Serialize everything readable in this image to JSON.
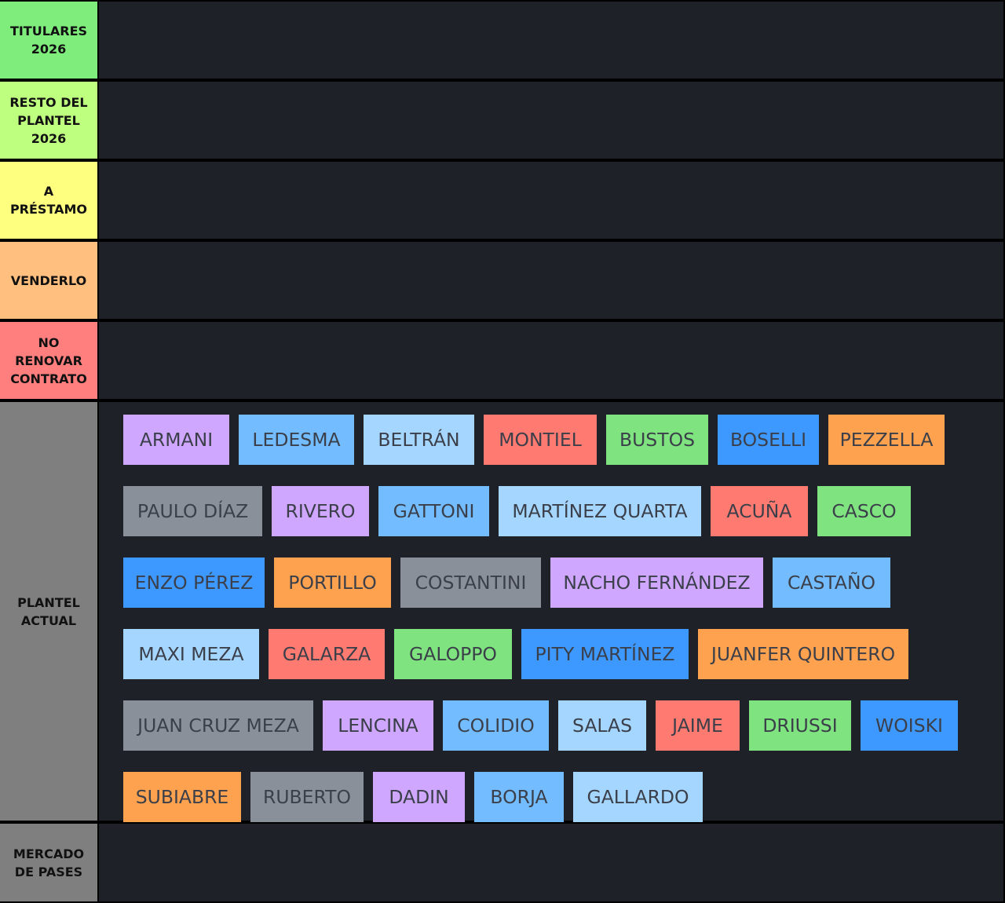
{
  "colors": {
    "background": "#1f2128",
    "border": "#000000",
    "item_text": "#3b3f4a",
    "label_text": "#111111"
  },
  "tiers": [
    {
      "label": "TITULARES\n2026",
      "color": "#7fed7c"
    },
    {
      "label": "RESTO DEL\nPLANTEL\n2026",
      "color": "#bfff7f"
    },
    {
      "label": "A\nPRÉSTAMO",
      "color": "#ffff7f"
    },
    {
      "label": "VENDERLO",
      "color": "#ffbf7f"
    },
    {
      "label": "NO\nRENOVAR\nCONTRATO",
      "color": "#ff7f7f"
    },
    {
      "label": "PLANTEL\nACTUAL",
      "color": "#7f7f7f"
    },
    {
      "label": "MERCADO\nDE PASES",
      "color": "#7f7f7f"
    }
  ],
  "players": [
    {
      "name": "ARMANI",
      "color": "#cfa7ff"
    },
    {
      "name": "LEDESMA",
      "color": "#72bcff"
    },
    {
      "name": "BELTRÁN",
      "color": "#a5d6ff"
    },
    {
      "name": "MONTIEL",
      "color": "#ff7a70"
    },
    {
      "name": "BUSTOS",
      "color": "#7fe37f"
    },
    {
      "name": "BOSELLI",
      "color": "#3d99ff"
    },
    {
      "name": "PEZZELLA",
      "color": "#ffa24f"
    },
    {
      "name": "PAULO DÍAZ",
      "color": "#8a9099"
    },
    {
      "name": "RIVERO",
      "color": "#cfa7ff"
    },
    {
      "name": "GATTONI",
      "color": "#72bcff"
    },
    {
      "name": "MARTÍNEZ QUARTA",
      "color": "#a5d6ff"
    },
    {
      "name": "ACUÑA",
      "color": "#ff7a70"
    },
    {
      "name": "CASCO",
      "color": "#7fe37f"
    },
    {
      "name": "ENZO PÉREZ",
      "color": "#3d99ff"
    },
    {
      "name": "PORTILLO",
      "color": "#ffa24f"
    },
    {
      "name": "COSTANTINI",
      "color": "#8a9099"
    },
    {
      "name": "NACHO FERNÁNDEZ",
      "color": "#cfa7ff"
    },
    {
      "name": "CASTAÑO",
      "color": "#72bcff"
    },
    {
      "name": "MAXI MEZA",
      "color": "#a5d6ff"
    },
    {
      "name": "GALARZA",
      "color": "#ff7a70"
    },
    {
      "name": "GALOPPO",
      "color": "#7fe37f"
    },
    {
      "name": "PITY MARTÍNEZ",
      "color": "#3d99ff"
    },
    {
      "name": "JUANFER QUINTERO",
      "color": "#ffa24f"
    },
    {
      "name": "JUAN CRUZ MEZA",
      "color": "#8a9099"
    },
    {
      "name": "LENCINA",
      "color": "#cfa7ff"
    },
    {
      "name": "COLIDIO",
      "color": "#72bcff"
    },
    {
      "name": "SALAS",
      "color": "#a5d6ff"
    },
    {
      "name": "JAIME",
      "color": "#ff7a70"
    },
    {
      "name": "DRIUSSI",
      "color": "#7fe37f"
    },
    {
      "name": "WOISKI",
      "color": "#3d99ff"
    },
    {
      "name": "SUBIABRE",
      "color": "#ffa24f"
    },
    {
      "name": "RUBERTO",
      "color": "#8a9099"
    },
    {
      "name": "DADIN",
      "color": "#cfa7ff"
    },
    {
      "name": "BORJA",
      "color": "#72bcff"
    },
    {
      "name": "GALLARDO",
      "color": "#a5d6ff"
    }
  ]
}
